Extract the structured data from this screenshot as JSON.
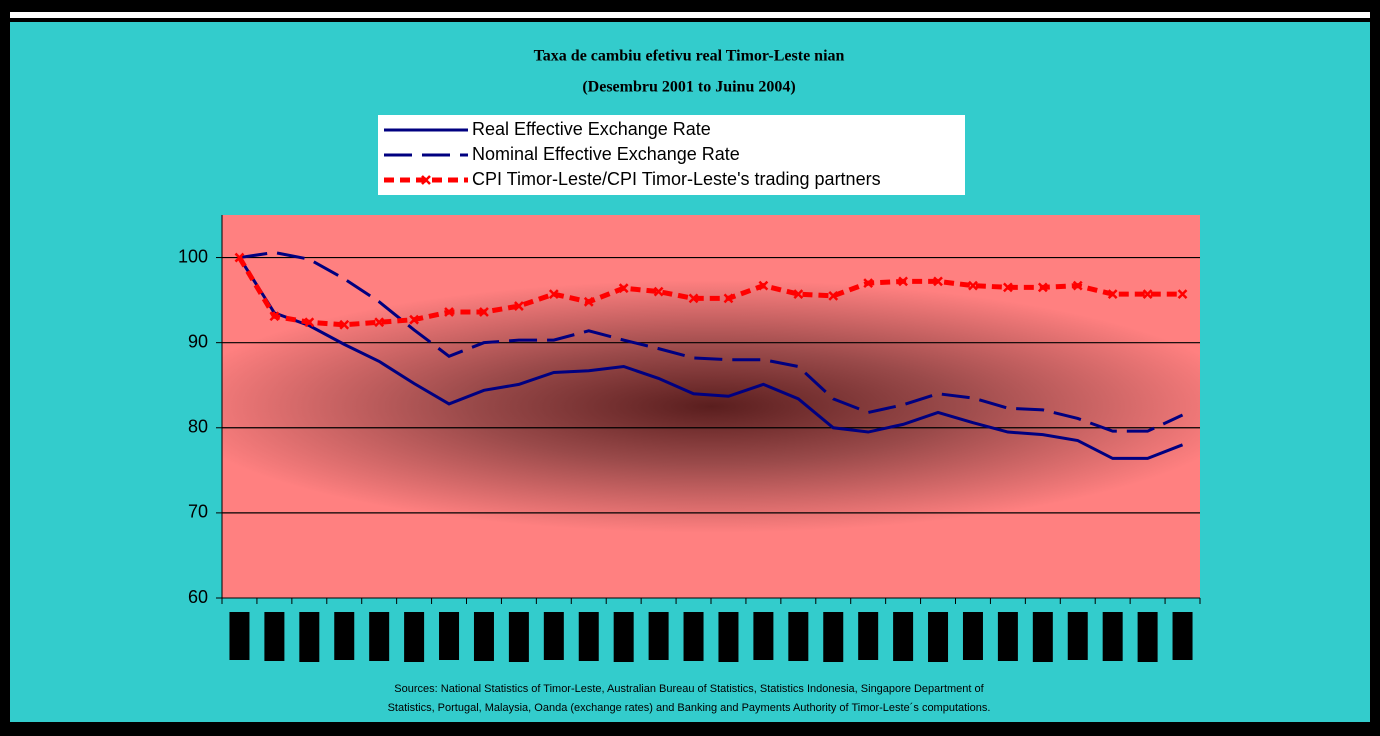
{
  "chart_data": {
    "type": "line",
    "title": "Taxa de cambiu efetivu real Timor-Leste nian",
    "subtitle": "(Desembru 2001 to Juinu 2004)",
    "categories": [
      null,
      null,
      null,
      null,
      null,
      null,
      null,
      null,
      null,
      null,
      null,
      null,
      null,
      null,
      null,
      null,
      null,
      null,
      null,
      null,
      null,
      null,
      null,
      null,
      null,
      null,
      null,
      null
    ],
    "series": [
      {
        "name": "Real Effective Exchange Rate",
        "color": "#000080",
        "line_style": "solid",
        "values": [
          100,
          93.5,
          92,
          89.8,
          87.8,
          85.2,
          82.8,
          84.4,
          85.1,
          86.5,
          86.7,
          87.2,
          85.8,
          84,
          83.7,
          85.1,
          83.4,
          80,
          79.5,
          80.4,
          81.8,
          80.6,
          79.5,
          79.2,
          78.5,
          76.4,
          76.4,
          78
        ]
      },
      {
        "name": "Nominal Effective Exchange Rate",
        "color": "#000080",
        "line_style": "dashed",
        "values": [
          100,
          100.6,
          99.8,
          97.5,
          94.8,
          91.5,
          88.4,
          90,
          90.3,
          90.3,
          91.4,
          90.3,
          89.3,
          88.2,
          88,
          88,
          87.2,
          83.4,
          81.8,
          82.7,
          84,
          83.5,
          82.3,
          82.1,
          81.1,
          79.6,
          79.6,
          81.5
        ]
      },
      {
        "name": "CPI Timor-Leste/CPI Timor-Leste's trading partners",
        "color": "#ff0000",
        "line_style": "dashed-x",
        "values": [
          100,
          93.1,
          92.4,
          92.1,
          92.4,
          92.7,
          93.6,
          93.6,
          94.3,
          95.7,
          94.8,
          96.4,
          96,
          95.2,
          95.2,
          96.7,
          95.7,
          95.5,
          97,
          97.2,
          97.2,
          96.7,
          96.5,
          96.5,
          96.7,
          95.7,
          95.7,
          95.7
        ]
      }
    ],
    "ylim": [
      60,
      105
    ],
    "yticks": [
      60,
      70,
      80,
      90,
      100
    ],
    "grid": true,
    "source": [
      "Sources: National Statistics of Timor-Leste, Australian Bureau of Statistics, Statistics Indonesia, Singapore Department of",
      "Statistics, Portugal, Malaysia, Oanda (exchange rates) and Banking and Payments Authority of Timor-Leste´s computations."
    ]
  }
}
